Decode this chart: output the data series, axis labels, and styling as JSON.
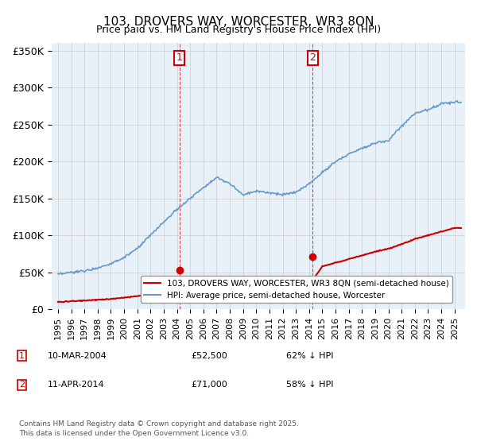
{
  "title": "103, DROVERS WAY, WORCESTER, WR3 8QN",
  "subtitle": "Price paid vs. HM Land Registry's House Price Index (HPI)",
  "hpi_color": "#6699cc",
  "price_color": "#cc0000",
  "annotation_color": "#cc0000",
  "vline_color": "#cc0000",
  "background_color": "#ffffff",
  "grid_color": "#cccccc",
  "ylim": [
    0,
    360000
  ],
  "ylabel_ticks": [
    0,
    50000,
    100000,
    150000,
    200000,
    250000,
    300000,
    350000
  ],
  "ylabel_labels": [
    "£0",
    "£50K",
    "£100K",
    "£150K",
    "£200K",
    "£250K",
    "£300K",
    "£350K"
  ],
  "xlim_start": 1994.5,
  "xlim_end": 2025.8,
  "xlabel_years": [
    1995,
    1996,
    1997,
    1998,
    1999,
    2000,
    2001,
    2002,
    2003,
    2004,
    2005,
    2006,
    2007,
    2008,
    2009,
    2010,
    2011,
    2012,
    2013,
    2014,
    2015,
    2016,
    2017,
    2018,
    2019,
    2020,
    2021,
    2022,
    2023,
    2024,
    2025
  ],
  "sale1_x": 2004.19,
  "sale1_y": 52500,
  "sale1_label": "1",
  "sale2_x": 2014.28,
  "sale2_y": 71000,
  "sale2_label": "2",
  "legend_line1": "103, DROVERS WAY, WORCESTER, WR3 8QN (semi-detached house)",
  "legend_line2": "HPI: Average price, semi-detached house, Worcester",
  "footnote1": "1    10-MAR-2004              £52,500           62% ↓ HPI",
  "footnote2": "2    11-APR-2014              £71,000           58% ↓ HPI",
  "footnote3": "Contains HM Land Registry data © Crown copyright and database right 2025.",
  "footnote4": "This data is licensed under the Open Government Licence v3.0."
}
